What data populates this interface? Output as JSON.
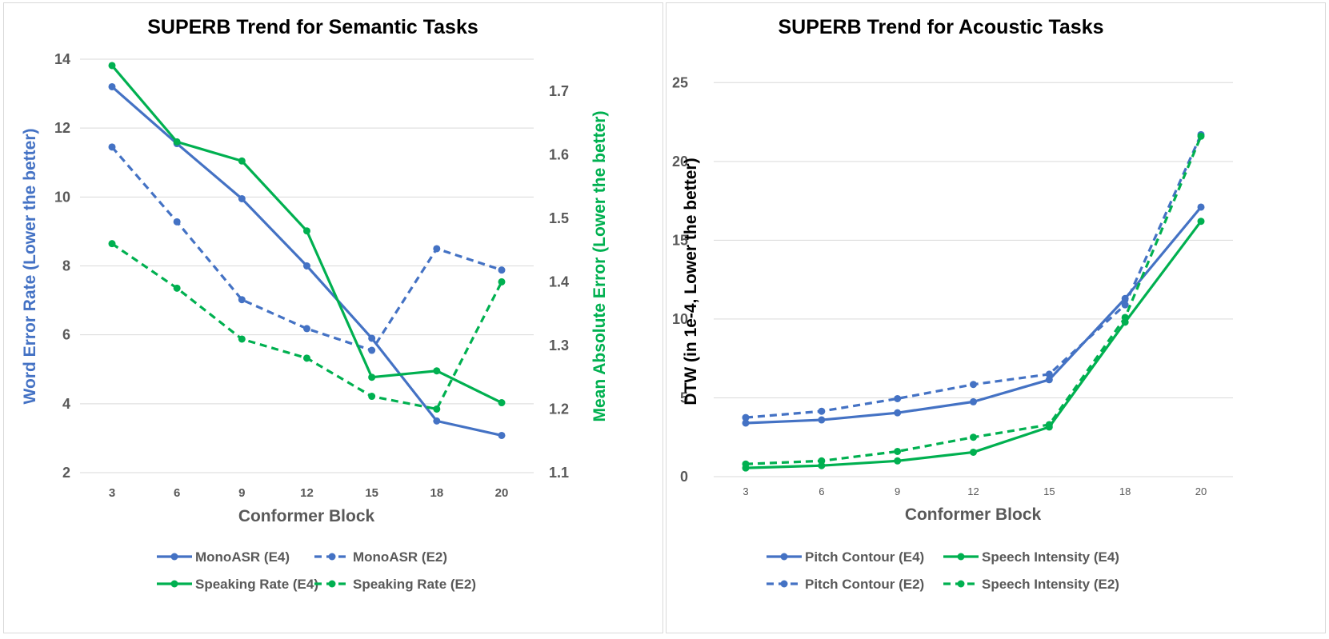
{
  "colors": {
    "blue": "#4472C4",
    "green": "#00B050",
    "grid": "#d9d9d9",
    "text": "#595959"
  },
  "chart_data": [
    {
      "type": "line",
      "title": "SUPERB Trend for Semantic Tasks",
      "xlabel": "Conformer Block",
      "ylabel": "Word Error Rate (Lower the better)",
      "y2label": "Mean Absolute Error (Lower the better)",
      "categories": [
        "3",
        "6",
        "9",
        "12",
        "15",
        "18",
        "20"
      ],
      "ylim": [
        2,
        14
      ],
      "yticks": [
        "2",
        "4",
        "6",
        "8",
        "10",
        "12",
        "14"
      ],
      "y2lim": [
        1.1,
        1.75
      ],
      "y2ticks": [
        "1.1",
        "1.2",
        "1.3",
        "1.4",
        "1.5",
        "1.6",
        "1.7"
      ],
      "grid": true,
      "legend_position": "bottom",
      "series": [
        {
          "name": "MonoASR (E4)",
          "color": "blue",
          "dash": false,
          "axis": "left",
          "values": [
            13.2,
            11.55,
            9.95,
            8.0,
            5.9,
            3.5,
            3.08
          ]
        },
        {
          "name": "MonoASR (E2)",
          "color": "blue",
          "dash": true,
          "axis": "left",
          "values": [
            11.45,
            9.28,
            7.02,
            6.18,
            5.55,
            8.5,
            7.88
          ]
        },
        {
          "name": "Speaking Rate (E4)",
          "color": "green",
          "dash": false,
          "axis": "right",
          "values": [
            1.74,
            1.62,
            1.59,
            1.48,
            1.25,
            1.26,
            1.21
          ]
        },
        {
          "name": "Speaking Rate (E2)",
          "color": "green",
          "dash": true,
          "axis": "right",
          "values": [
            1.46,
            1.39,
            1.31,
            1.28,
            1.22,
            1.2,
            1.4
          ]
        }
      ]
    },
    {
      "type": "line",
      "title": "SUPERB Trend for Acoustic Tasks",
      "xlabel": "Conformer Block",
      "ylabel": "DTW (in 1e-4, Lower the better)",
      "categories": [
        "3",
        "6",
        "9",
        "12",
        "15",
        "18",
        "20"
      ],
      "ylim": [
        0,
        27.5
      ],
      "yticks": [
        "0",
        "5",
        "10",
        "15",
        "20",
        "25"
      ],
      "grid": true,
      "legend_position": "bottom",
      "series": [
        {
          "name": "Pitch Contour (E4)",
          "color": "blue",
          "dash": false,
          "values": [
            3.4,
            3.6,
            4.05,
            4.75,
            6.15,
            11.3,
            17.1
          ]
        },
        {
          "name": "Speech Intensity (E4)",
          "color": "green",
          "dash": false,
          "values": [
            0.55,
            0.7,
            1.0,
            1.55,
            3.15,
            9.8,
            16.2
          ]
        },
        {
          "name": "Pitch Contour (E2)",
          "color": "blue",
          "dash": true,
          "values": [
            3.75,
            4.15,
            4.95,
            5.85,
            6.5,
            10.9,
            21.7
          ]
        },
        {
          "name": "Speech Intensity (E2)",
          "color": "green",
          "dash": true,
          "values": [
            0.8,
            1.0,
            1.6,
            2.5,
            3.3,
            10.1,
            21.6
          ]
        }
      ]
    }
  ]
}
